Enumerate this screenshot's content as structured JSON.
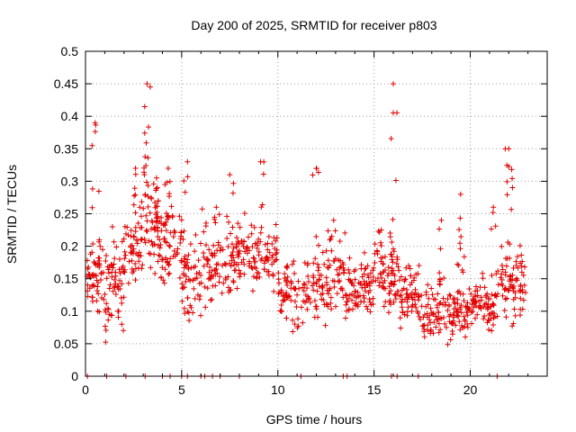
{
  "chart_data": {
    "type": "scatter",
    "title": "Day 200 of 2025, SRMTID for receiver p803",
    "xlabel": "GPS time / hours",
    "ylabel": "SRMTID / TECUs",
    "xlim": [
      0,
      24
    ],
    "ylim": [
      0,
      0.5
    ],
    "xticks": [
      0,
      5,
      10,
      15,
      20
    ],
    "xtick_labels": [
      "0",
      "5",
      "10",
      "15",
      "20"
    ],
    "yticks": [
      0,
      0.05,
      0.1,
      0.15,
      0.2,
      0.25,
      0.3,
      0.35,
      0.4,
      0.45,
      0.5
    ],
    "ytick_labels": [
      "0",
      "0.05",
      "0.1",
      "0.15",
      "0.2",
      "0.25",
      "0.3",
      "0.35",
      "0.4",
      "0.45",
      "0.5"
    ],
    "grid": true,
    "marker": "plus",
    "color": "#e00000",
    "zero_points_x": [
      0.1,
      1.1,
      2.1,
      3.1,
      4.0,
      4.4,
      5.0,
      5.3,
      6.0,
      6.2,
      6.6,
      7.0,
      8.0,
      11.2,
      13.4,
      13.6,
      15.9,
      16.2,
      17.3,
      21.4
    ],
    "clusters": [
      {
        "x0": 0.05,
        "x1": 0.8,
        "base": 0.16,
        "spread": 0.05,
        "peak": 0.39,
        "peak_x": 0.5,
        "n": 55
      },
      {
        "x0": 0.8,
        "x1": 2.0,
        "base": 0.14,
        "spread": 0.06,
        "peak": 0.23,
        "peak_x": 1.4,
        "n": 70
      },
      {
        "x0": 2.0,
        "x1": 3.0,
        "base": 0.2,
        "spread": 0.06,
        "peak": 0.32,
        "peak_x": 2.6,
        "n": 60
      },
      {
        "x0": 3.0,
        "x1": 3.8,
        "base": 0.24,
        "spread": 0.06,
        "peak": 0.45,
        "peak_x": 3.2,
        "n": 70
      },
      {
        "x0": 3.8,
        "x1": 5.0,
        "base": 0.2,
        "spread": 0.06,
        "peak": 0.32,
        "peak_x": 4.3,
        "n": 70
      },
      {
        "x0": 5.0,
        "x1": 6.0,
        "base": 0.15,
        "spread": 0.06,
        "peak": 0.33,
        "peak_x": 5.3,
        "n": 60
      },
      {
        "x0": 6.0,
        "x1": 7.5,
        "base": 0.17,
        "spread": 0.06,
        "peak": 0.26,
        "peak_x": 6.8,
        "n": 70
      },
      {
        "x0": 7.5,
        "x1": 8.5,
        "base": 0.18,
        "spread": 0.05,
        "peak": 0.31,
        "peak_x": 7.5,
        "n": 60
      },
      {
        "x0": 8.5,
        "x1": 10.0,
        "base": 0.18,
        "spread": 0.05,
        "peak": 0.33,
        "peak_x": 9.1,
        "n": 75
      },
      {
        "x0": 10.0,
        "x1": 11.5,
        "base": 0.12,
        "spread": 0.04,
        "peak": 0.17,
        "peak_x": 10.5,
        "n": 70
      },
      {
        "x0": 11.5,
        "x1": 12.6,
        "base": 0.14,
        "spread": 0.05,
        "peak": 0.32,
        "peak_x": 12.0,
        "n": 60
      },
      {
        "x0": 12.6,
        "x1": 13.5,
        "base": 0.16,
        "spread": 0.05,
        "peak": 0.24,
        "peak_x": 12.9,
        "n": 45
      },
      {
        "x0": 13.5,
        "x1": 15.0,
        "base": 0.13,
        "spread": 0.04,
        "peak": 0.19,
        "peak_x": 14.5,
        "n": 85
      },
      {
        "x0": 15.0,
        "x1": 16.3,
        "base": 0.16,
        "spread": 0.05,
        "peak": 0.45,
        "peak_x": 16.0,
        "n": 85
      },
      {
        "x0": 16.3,
        "x1": 17.5,
        "base": 0.12,
        "spread": 0.04,
        "peak": 0.17,
        "peak_x": 16.8,
        "n": 65
      },
      {
        "x0": 17.5,
        "x1": 18.8,
        "base": 0.1,
        "spread": 0.04,
        "peak": 0.24,
        "peak_x": 18.5,
        "n": 70
      },
      {
        "x0": 18.8,
        "x1": 20.0,
        "base": 0.1,
        "spread": 0.035,
        "peak": 0.28,
        "peak_x": 19.5,
        "n": 75
      },
      {
        "x0": 20.0,
        "x1": 21.3,
        "base": 0.11,
        "spread": 0.035,
        "peak": 0.26,
        "peak_x": 21.2,
        "n": 75
      },
      {
        "x0": 21.3,
        "x1": 22.9,
        "base": 0.14,
        "spread": 0.05,
        "peak": 0.35,
        "peak_x": 22.0,
        "n": 90
      }
    ]
  }
}
